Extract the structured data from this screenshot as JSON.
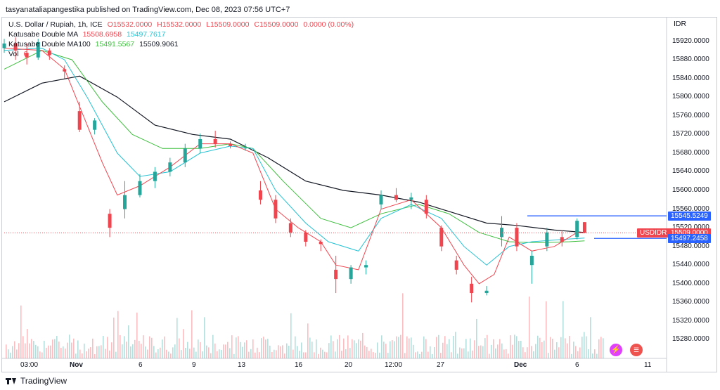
{
  "header": {
    "published_by": "tasyanataliapangestika published on TradingView.com, Dec 08, 2023 07:56 UTC+7"
  },
  "legend": {
    "symbol": "U.S. Dollar / Rupiah, 1h, ICE",
    "ohlc": {
      "open": "O15532.0000",
      "high": "H15532.0000",
      "low": "L15509.0000",
      "close": "C15509.0000",
      "change": "0.0000 (0.00%)"
    },
    "ma1": {
      "label": "Katusabe Double MA",
      "v1": "15508.6958",
      "v2": "15497.7617"
    },
    "ma2": {
      "label": "Katusabe Double MA100",
      "v1": "15491.5567",
      "v2": "15509.9061"
    },
    "vol": {
      "label": "Vol",
      "value": "6"
    }
  },
  "currency": "IDR",
  "price_tags": {
    "upper": {
      "value": "15545.5249",
      "color": "#2962ff"
    },
    "symbol": {
      "label": "USDIDR",
      "value": "15509.0000",
      "color": "#f0454f"
    },
    "lower": {
      "value": "15497.2458",
      "color": "#2962ff"
    }
  },
  "colors": {
    "up": "#26a69a",
    "down": "#f0454f",
    "ma_fast": "#f0454f",
    "ma_mid": "#26c2d3",
    "ma_slow": "#3fbf3f",
    "ma_long": "#131722",
    "level": "#2962ff"
  },
  "icons": [
    "lightning-icon",
    "us-flag-icon"
  ],
  "footer": {
    "brand": "TradingView"
  },
  "chart_data": {
    "type": "candlestick",
    "y_axis": {
      "min": 15240,
      "max": 15960,
      "ticks": [
        "15920.0000",
        "15880.0000",
        "15840.0000",
        "15800.0000",
        "15760.0000",
        "15720.0000",
        "15680.0000",
        "15640.0000",
        "15600.0000",
        "15560.0000",
        "15520.0000",
        "15480.0000",
        "15440.0000",
        "15400.0000",
        "15360.0000",
        "15320.0000",
        "15280.0000"
      ]
    },
    "x_axis": {
      "ticks": [
        "03:00",
        "Nov",
        "6",
        "9",
        "13",
        "16",
        "20",
        "12:00",
        "27",
        "Dec",
        "6",
        "11"
      ]
    },
    "price_series": [
      {
        "i": 0,
        "o": 15905,
        "h": 15925,
        "l": 15895,
        "c": 15915
      },
      {
        "i": 3,
        "o": 15915,
        "h": 15928,
        "l": 15880,
        "c": 15900
      },
      {
        "i": 6,
        "o": 15895,
        "h": 15915,
        "l": 15870,
        "c": 15885
      },
      {
        "i": 9,
        "o": 15885,
        "h": 15925,
        "l": 15880,
        "c": 15918
      },
      {
        "i": 12,
        "o": 15900,
        "h": 15905,
        "l": 15880,
        "c": 15890
      },
      {
        "i": 16,
        "o": 15860,
        "h": 15868,
        "l": 15840,
        "c": 15855
      },
      {
        "i": 20,
        "o": 15770,
        "h": 15790,
        "l": 15725,
        "c": 15730
      },
      {
        "i": 24,
        "o": 15730,
        "h": 15755,
        "l": 15720,
        "c": 15750
      },
      {
        "i": 28,
        "o": 15550,
        "h": 15560,
        "l": 15500,
        "c": 15520
      },
      {
        "i": 32,
        "o": 15560,
        "h": 15620,
        "l": 15540,
        "c": 15590
      },
      {
        "i": 36,
        "o": 15590,
        "h": 15635,
        "l": 15585,
        "c": 15620
      },
      {
        "i": 40,
        "o": 15620,
        "h": 15650,
        "l": 15605,
        "c": 15640
      },
      {
        "i": 44,
        "o": 15640,
        "h": 15670,
        "l": 15630,
        "c": 15660
      },
      {
        "i": 48,
        "o": 15660,
        "h": 15700,
        "l": 15650,
        "c": 15690
      },
      {
        "i": 52,
        "o": 15690,
        "h": 15722,
        "l": 15680,
        "c": 15710
      },
      {
        "i": 56,
        "o": 15710,
        "h": 15728,
        "l": 15692,
        "c": 15700
      },
      {
        "i": 60,
        "o": 15700,
        "h": 15705,
        "l": 15690,
        "c": 15695
      },
      {
        "i": 64,
        "o": 15690,
        "h": 15700,
        "l": 15685,
        "c": 15692
      },
      {
        "i": 68,
        "o": 15600,
        "h": 15620,
        "l": 15570,
        "c": 15580
      },
      {
        "i": 72,
        "o": 15580,
        "h": 15590,
        "l": 15530,
        "c": 15540
      },
      {
        "i": 76,
        "o": 15530,
        "h": 15540,
        "l": 15500,
        "c": 15510
      },
      {
        "i": 80,
        "o": 15510,
        "h": 15515,
        "l": 15480,
        "c": 15490
      },
      {
        "i": 84,
        "o": 15490,
        "h": 15495,
        "l": 15470,
        "c": 15485
      },
      {
        "i": 88,
        "o": 15430,
        "h": 15460,
        "l": 15380,
        "c": 15410
      },
      {
        "i": 92,
        "o": 15410,
        "h": 15440,
        "l": 15400,
        "c": 15435
      },
      {
        "i": 96,
        "o": 15435,
        "h": 15450,
        "l": 15420,
        "c": 15440
      },
      {
        "i": 100,
        "o": 15570,
        "h": 15600,
        "l": 15560,
        "c": 15590
      },
      {
        "i": 104,
        "o": 15590,
        "h": 15605,
        "l": 15575,
        "c": 15580
      },
      {
        "i": 108,
        "o": 15580,
        "h": 15595,
        "l": 15560,
        "c": 15585
      },
      {
        "i": 112,
        "o": 15580,
        "h": 15590,
        "l": 15540,
        "c": 15550
      },
      {
        "i": 116,
        "o": 15520,
        "h": 15525,
        "l": 15470,
        "c": 15480
      },
      {
        "i": 120,
        "o": 15450,
        "h": 15460,
        "l": 15420,
        "c": 15430
      },
      {
        "i": 124,
        "o": 15400,
        "h": 15415,
        "l": 15360,
        "c": 15380
      },
      {
        "i": 128,
        "o": 15380,
        "h": 15395,
        "l": 15375,
        "c": 15385
      },
      {
        "i": 132,
        "o": 15500,
        "h": 15545,
        "l": 15480,
        "c": 15520
      },
      {
        "i": 136,
        "o": 15520,
        "h": 15530,
        "l": 15470,
        "c": 15480
      },
      {
        "i": 140,
        "o": 15440,
        "h": 15470,
        "l": 15400,
        "c": 15460
      },
      {
        "i": 144,
        "o": 15480,
        "h": 15520,
        "l": 15470,
        "c": 15510
      },
      {
        "i": 148,
        "o": 15500,
        "h": 15515,
        "l": 15480,
        "c": 15490
      },
      {
        "i": 152,
        "o": 15500,
        "h": 15540,
        "l": 15495,
        "c": 15535
      },
      {
        "i": 154,
        "o": 15532,
        "h": 15532,
        "l": 15509,
        "c": 15509
      }
    ],
    "ma_fast": [
      [
        0,
        15905
      ],
      [
        10,
        15900
      ],
      [
        16,
        15860
      ],
      [
        20,
        15780
      ],
      [
        26,
        15660
      ],
      [
        30,
        15590
      ],
      [
        36,
        15610
      ],
      [
        44,
        15650
      ],
      [
        52,
        15700
      ],
      [
        60,
        15700
      ],
      [
        66,
        15680
      ],
      [
        72,
        15560
      ],
      [
        78,
        15520
      ],
      [
        84,
        15490
      ],
      [
        88,
        15440
      ],
      [
        94,
        15430
      ],
      [
        100,
        15560
      ],
      [
        108,
        15580
      ],
      [
        116,
        15520
      ],
      [
        122,
        15440
      ],
      [
        126,
        15400
      ],
      [
        130,
        15420
      ],
      [
        134,
        15500
      ],
      [
        140,
        15470
      ],
      [
        146,
        15480
      ],
      [
        152,
        15510
      ],
      [
        154,
        15509
      ]
    ],
    "ma_mid": [
      [
        0,
        15900
      ],
      [
        10,
        15905
      ],
      [
        16,
        15880
      ],
      [
        22,
        15800
      ],
      [
        30,
        15680
      ],
      [
        36,
        15630
      ],
      [
        44,
        15640
      ],
      [
        52,
        15680
      ],
      [
        60,
        15695
      ],
      [
        66,
        15690
      ],
      [
        72,
        15600
      ],
      [
        80,
        15530
      ],
      [
        86,
        15490
      ],
      [
        94,
        15470
      ],
      [
        100,
        15540
      ],
      [
        108,
        15570
      ],
      [
        116,
        15540
      ],
      [
        122,
        15480
      ],
      [
        128,
        15440
      ],
      [
        134,
        15480
      ],
      [
        140,
        15490
      ],
      [
        148,
        15495
      ],
      [
        154,
        15498
      ]
    ],
    "ma_slow": [
      [
        0,
        15860
      ],
      [
        10,
        15900
      ],
      [
        18,
        15880
      ],
      [
        26,
        15790
      ],
      [
        34,
        15720
      ],
      [
        42,
        15690
      ],
      [
        52,
        15690
      ],
      [
        60,
        15700
      ],
      [
        66,
        15690
      ],
      [
        74,
        15620
      ],
      [
        84,
        15540
      ],
      [
        92,
        15520
      ],
      [
        100,
        15550
      ],
      [
        110,
        15570
      ],
      [
        118,
        15550
      ],
      [
        126,
        15510
      ],
      [
        134,
        15490
      ],
      [
        142,
        15488
      ],
      [
        150,
        15490
      ],
      [
        154,
        15492
      ]
    ],
    "ma_long": [
      [
        0,
        15790
      ],
      [
        10,
        15830
      ],
      [
        20,
        15845
      ],
      [
        30,
        15800
      ],
      [
        40,
        15740
      ],
      [
        50,
        15720
      ],
      [
        60,
        15710
      ],
      [
        70,
        15670
      ],
      [
        80,
        15620
      ],
      [
        90,
        15600
      ],
      [
        100,
        15590
      ],
      [
        110,
        15575
      ],
      [
        120,
        15550
      ],
      [
        128,
        15530
      ],
      [
        136,
        15525
      ],
      [
        146,
        15515
      ],
      [
        154,
        15510
      ]
    ],
    "levels": [
      15545.5249,
      15509.0,
      15497.2458
    ]
  }
}
